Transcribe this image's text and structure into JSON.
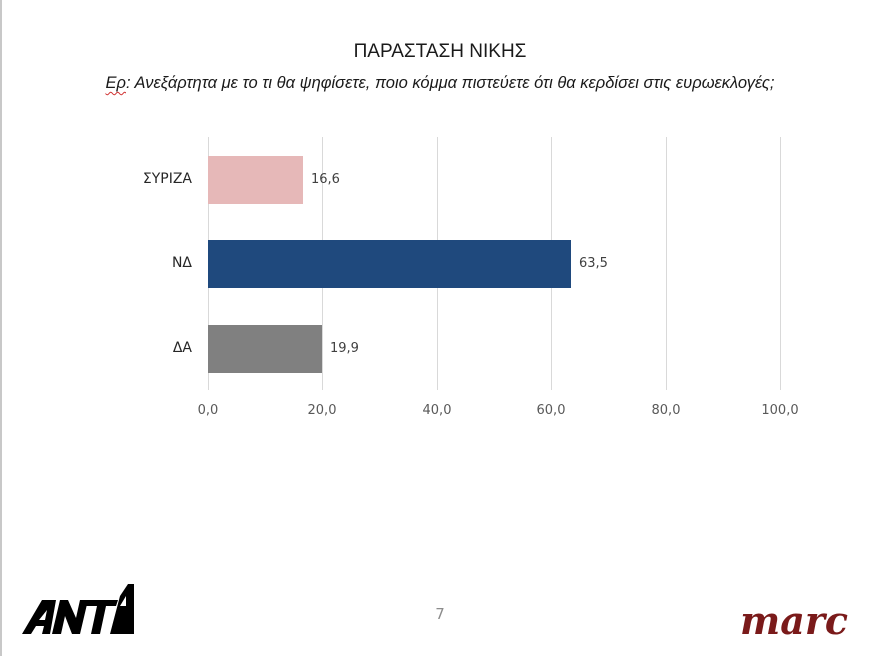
{
  "slide": {
    "title": "ΠΑΡΑΣΤΑΣΗ ΝΙΚΗΣ",
    "question_prefix": "Ερ",
    "question_text": ": Ανεξάρτητα με το τι θα ψηφίσετε, ποιο κόμμα πιστεύετε ότι θα κερδίσει στις ευρωεκλογές;",
    "page_number": "7",
    "logos": {
      "left": "ANT1",
      "right": "marc"
    },
    "colors": {
      "marc_brand": "#7a1a1a",
      "ant1_brand": "#000000"
    }
  },
  "chart_data": {
    "type": "bar",
    "orientation": "horizontal",
    "title": "ΠΑΡΑΣΤΑΣΗ ΝΙΚΗΣ",
    "subtitle": "Ερ: Ανεξάρτητα με το τι θα ψηφίσετε, ποιο κόμμα πιστεύετε ότι θα κερδίσει στις ευρωεκλογές;",
    "categories": [
      "ΣΥΡΙΖΑ",
      "ΝΔ",
      "ΔΑ"
    ],
    "values": [
      16.6,
      63.5,
      19.9
    ],
    "value_labels": [
      "16,6",
      "63,5",
      "19,9"
    ],
    "colors": [
      "#e6b8b8",
      "#1f497d",
      "#808080"
    ],
    "xlabel": "",
    "ylabel": "",
    "xlim": [
      0,
      100
    ],
    "ticks": [
      0,
      20,
      40,
      60,
      80,
      100
    ],
    "tick_labels": [
      "0,0",
      "20,0",
      "40,0",
      "60,0",
      "80,0",
      "100,0"
    ],
    "grid": true,
    "legend": "none"
  }
}
